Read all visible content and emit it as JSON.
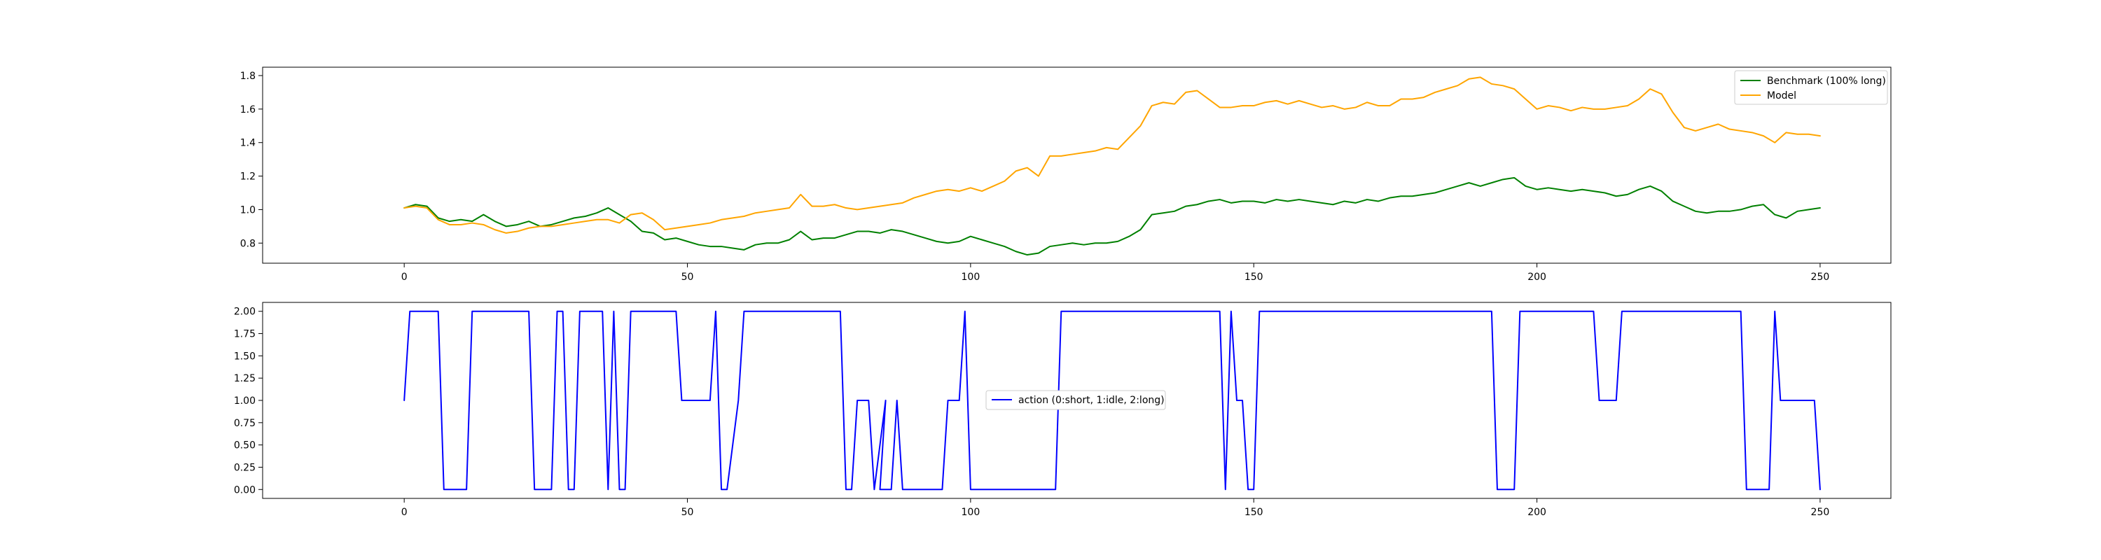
{
  "chart_data": [
    {
      "type": "line",
      "title": "",
      "xlabel": "",
      "ylabel": "",
      "xlim": [
        -25,
        262.5
      ],
      "ylim": [
        0.68,
        1.85
      ],
      "xticks": [
        0,
        50,
        100,
        150,
        200,
        250
      ],
      "yticks": [
        0.8,
        1.0,
        1.2,
        1.4,
        1.6,
        1.8
      ],
      "xtick_labels": [
        "0",
        "50",
        "100",
        "150",
        "200",
        "250"
      ],
      "ytick_labels": [
        "0.8",
        "1.0",
        "1.2",
        "1.4",
        "1.6",
        "1.8"
      ],
      "legend_position": "upper right",
      "series": [
        {
          "name": "Benchmark (100% long)",
          "color": "#008000",
          "x": [
            0,
            2,
            4,
            6,
            8,
            10,
            12,
            14,
            16,
            18,
            20,
            22,
            24,
            26,
            28,
            30,
            32,
            34,
            36,
            38,
            40,
            42,
            44,
            46,
            48,
            50,
            52,
            54,
            56,
            58,
            60,
            62,
            64,
            66,
            68,
            70,
            72,
            74,
            76,
            78,
            80,
            82,
            84,
            86,
            88,
            90,
            92,
            94,
            96,
            98,
            100,
            102,
            104,
            106,
            108,
            110,
            112,
            114,
            116,
            118,
            120,
            122,
            124,
            126,
            128,
            130,
            132,
            134,
            136,
            138,
            140,
            142,
            144,
            146,
            148,
            150,
            152,
            154,
            156,
            158,
            160,
            162,
            164,
            166,
            168,
            170,
            172,
            174,
            176,
            178,
            180,
            182,
            184,
            186,
            188,
            190,
            192,
            194,
            196,
            198,
            200,
            202,
            204,
            206,
            208,
            210,
            212,
            214,
            216,
            218,
            220,
            222,
            224,
            226,
            228,
            230,
            232,
            234,
            236,
            238,
            240,
            242,
            244,
            246,
            248,
            250
          ],
          "values": [
            1.01,
            1.03,
            1.02,
            0.95,
            0.93,
            0.94,
            0.93,
            0.97,
            0.93,
            0.9,
            0.91,
            0.93,
            0.9,
            0.91,
            0.93,
            0.95,
            0.96,
            0.98,
            1.01,
            0.97,
            0.93,
            0.87,
            0.86,
            0.82,
            0.83,
            0.81,
            0.79,
            0.78,
            0.78,
            0.77,
            0.76,
            0.79,
            0.8,
            0.8,
            0.82,
            0.87,
            0.82,
            0.83,
            0.83,
            0.85,
            0.87,
            0.87,
            0.86,
            0.88,
            0.87,
            0.85,
            0.83,
            0.81,
            0.8,
            0.81,
            0.84,
            0.82,
            0.8,
            0.78,
            0.75,
            0.73,
            0.74,
            0.78,
            0.79,
            0.8,
            0.79,
            0.8,
            0.8,
            0.81,
            0.84,
            0.88,
            0.97,
            0.98,
            0.99,
            1.02,
            1.03,
            1.05,
            1.06,
            1.04,
            1.05,
            1.05,
            1.04,
            1.06,
            1.05,
            1.06,
            1.05,
            1.04,
            1.03,
            1.05,
            1.04,
            1.06,
            1.05,
            1.07,
            1.08,
            1.08,
            1.09,
            1.1,
            1.12,
            1.14,
            1.16,
            1.14,
            1.16,
            1.18,
            1.19,
            1.14,
            1.12,
            1.13,
            1.12,
            1.11,
            1.12,
            1.11,
            1.1,
            1.08,
            1.09,
            1.12,
            1.14,
            1.11,
            1.05,
            1.02,
            0.99,
            0.98,
            0.99,
            0.99,
            1.0,
            1.02,
            1.03,
            0.97,
            0.95,
            0.99,
            1.0,
            1.01
          ]
        },
        {
          "name": "Model",
          "color": "#FFA500",
          "x": [
            0,
            2,
            4,
            6,
            8,
            10,
            12,
            14,
            16,
            18,
            20,
            22,
            24,
            26,
            28,
            30,
            32,
            34,
            36,
            38,
            40,
            42,
            44,
            46,
            48,
            50,
            52,
            54,
            56,
            58,
            60,
            62,
            64,
            66,
            68,
            70,
            72,
            74,
            76,
            78,
            80,
            82,
            84,
            86,
            88,
            90,
            92,
            94,
            96,
            98,
            100,
            102,
            104,
            106,
            108,
            110,
            112,
            114,
            116,
            118,
            120,
            122,
            124,
            126,
            128,
            130,
            132,
            134,
            136,
            138,
            140,
            142,
            144,
            146,
            148,
            150,
            152,
            154,
            156,
            158,
            160,
            162,
            164,
            166,
            168,
            170,
            172,
            174,
            176,
            178,
            180,
            182,
            184,
            186,
            188,
            190,
            192,
            194,
            196,
            198,
            200,
            202,
            204,
            206,
            208,
            210,
            212,
            214,
            216,
            218,
            220,
            222,
            224,
            226,
            228,
            230,
            232,
            234,
            236,
            238,
            240,
            242,
            244,
            246,
            248,
            250
          ],
          "values": [
            1.01,
            1.02,
            1.01,
            0.94,
            0.91,
            0.91,
            0.92,
            0.91,
            0.88,
            0.86,
            0.87,
            0.89,
            0.9,
            0.9,
            0.91,
            0.92,
            0.93,
            0.94,
            0.94,
            0.92,
            0.97,
            0.98,
            0.94,
            0.88,
            0.89,
            0.9,
            0.91,
            0.92,
            0.94,
            0.95,
            0.96,
            0.98,
            0.99,
            1.0,
            1.01,
            1.09,
            1.02,
            1.02,
            1.03,
            1.01,
            1.0,
            1.01,
            1.02,
            1.03,
            1.04,
            1.07,
            1.09,
            1.11,
            1.12,
            1.11,
            1.13,
            1.11,
            1.14,
            1.17,
            1.23,
            1.25,
            1.2,
            1.32,
            1.32,
            1.33,
            1.34,
            1.35,
            1.37,
            1.36,
            1.43,
            1.5,
            1.62,
            1.64,
            1.63,
            1.7,
            1.71,
            1.66,
            1.61,
            1.61,
            1.62,
            1.62,
            1.64,
            1.65,
            1.63,
            1.65,
            1.63,
            1.61,
            1.62,
            1.6,
            1.61,
            1.64,
            1.62,
            1.62,
            1.66,
            1.66,
            1.67,
            1.7,
            1.72,
            1.74,
            1.78,
            1.79,
            1.75,
            1.74,
            1.72,
            1.66,
            1.6,
            1.62,
            1.61,
            1.59,
            1.61,
            1.6,
            1.6,
            1.61,
            1.62,
            1.66,
            1.72,
            1.69,
            1.58,
            1.49,
            1.47,
            1.49,
            1.51,
            1.48,
            1.47,
            1.46,
            1.44,
            1.4,
            1.46,
            1.45,
            1.45,
            1.44
          ]
        }
      ]
    },
    {
      "type": "line",
      "title": "",
      "xlabel": "",
      "ylabel": "",
      "xlim": [
        -25,
        262.5
      ],
      "ylim": [
        -0.1,
        2.1
      ],
      "xticks": [
        0,
        50,
        100,
        150,
        200,
        250
      ],
      "yticks": [
        0.0,
        0.25,
        0.5,
        0.75,
        1.0,
        1.25,
        1.5,
        1.75,
        2.0
      ],
      "xtick_labels": [
        "0",
        "50",
        "100",
        "150",
        "200",
        "250"
      ],
      "ytick_labels": [
        "0.00",
        "0.25",
        "0.50",
        "0.75",
        "1.00",
        "1.25",
        "1.50",
        "1.75",
        "2.00"
      ],
      "legend_position": "center",
      "series": [
        {
          "name": "action (0:short, 1:idle, 2:long)",
          "color": "#0000FF",
          "x": [
            0,
            1,
            6,
            7,
            11,
            12,
            22,
            23,
            26,
            27,
            28,
            29,
            30,
            31,
            35,
            36,
            37,
            38,
            39,
            40,
            48,
            49,
            54,
            55,
            56,
            57,
            59,
            60,
            77,
            78,
            79,
            80,
            82,
            83,
            85,
            84,
            86,
            87,
            88,
            89,
            90,
            91,
            95,
            96,
            98,
            99,
            100,
            101,
            115,
            116,
            144,
            145,
            146,
            147,
            148,
            149,
            150,
            151,
            192,
            193,
            196,
            197,
            210,
            211,
            214,
            215,
            236,
            237,
            241,
            242,
            243,
            244,
            249,
            250
          ],
          "values": [
            1,
            2,
            2,
            0,
            0,
            2,
            2,
            0,
            0,
            2,
            2,
            0,
            0,
            2,
            2,
            0,
            2,
            0,
            0,
            2,
            2,
            1,
            1,
            2,
            0,
            0,
            1,
            2,
            2,
            0,
            0,
            1,
            1,
            0,
            1,
            0,
            0,
            1,
            0,
            0,
            0,
            0,
            0,
            1,
            1,
            2,
            0,
            0,
            0,
            2,
            2,
            0,
            2,
            1,
            1,
            0,
            0,
            2,
            2,
            0,
            0,
            2,
            2,
            1,
            1,
            2,
            2,
            0,
            0,
            2,
            1,
            1,
            1,
            0
          ]
        }
      ]
    }
  ]
}
